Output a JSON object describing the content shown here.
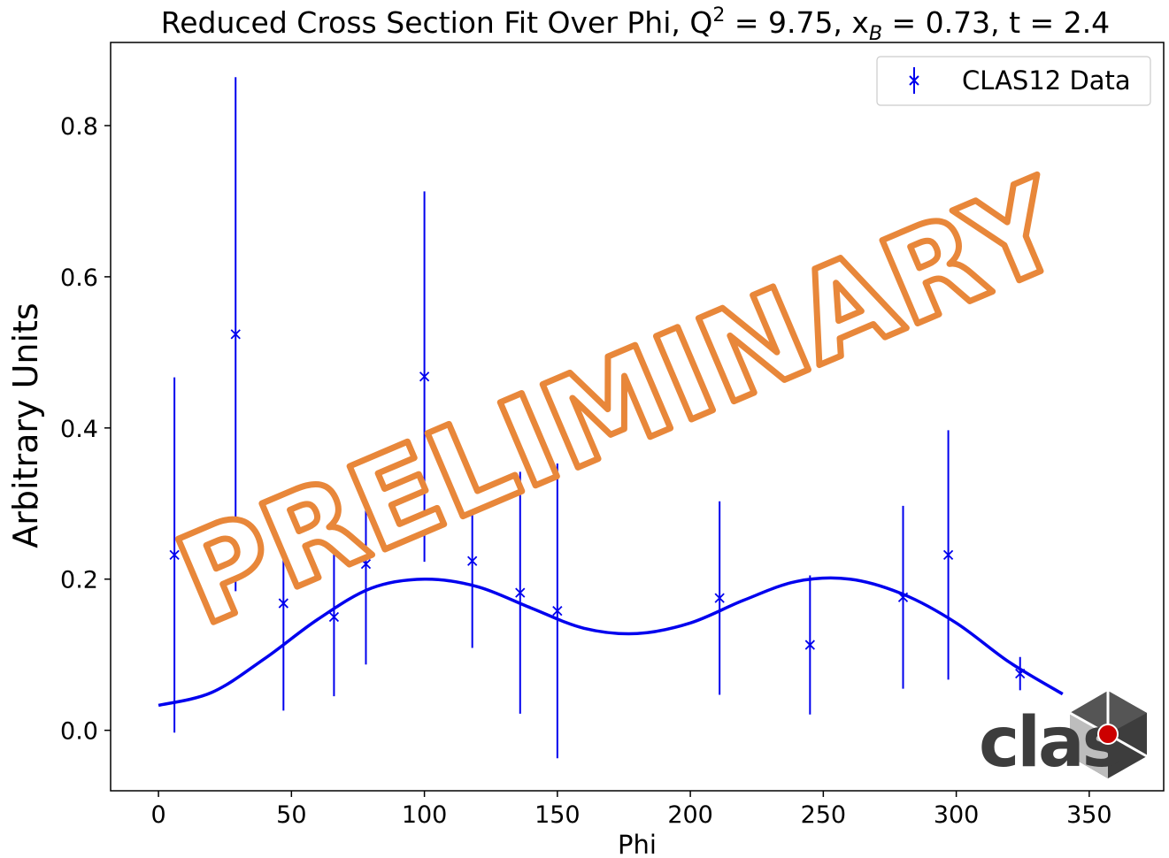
{
  "chart_data": {
    "type": "scatter",
    "title": "Reduced Cross Section Fit Over Phi, Q",
    "title_parts": {
      "prefix": "Reduced Cross Section Fit Over Phi, Q",
      "q_sup": "2",
      "mid1": " = 9.75, x",
      "x_sub": "B",
      "mid2": " = 0.73, t = 2.4"
    },
    "xlabel": "Phi",
    "ylabel": "Arbitrary Units",
    "xlim": [
      -18,
      378
    ],
    "ylim": [
      -0.08,
      0.91
    ],
    "x_ticks": [
      0,
      50,
      100,
      150,
      200,
      250,
      300,
      350
    ],
    "y_ticks": [
      0.0,
      0.2,
      0.4,
      0.6,
      0.8
    ],
    "y_tick_labels": [
      "0.0",
      "0.2",
      "0.4",
      "0.6",
      "0.8"
    ],
    "grid": false,
    "legend": {
      "placement": "top-right",
      "entries": [
        "CLAS12 Data"
      ]
    },
    "series": [
      {
        "name": "CLAS12 Data",
        "marker": "x",
        "color": "#0000ee",
        "x": [
          6,
          29,
          47,
          66,
          78,
          100,
          118,
          136,
          150,
          211,
          245,
          280,
          297,
          324
        ],
        "y": [
          0.232,
          0.524,
          0.168,
          0.15,
          0.22,
          0.468,
          0.224,
          0.182,
          0.158,
          0.175,
          0.113,
          0.176,
          0.232,
          0.075
        ],
        "yerr": [
          0.235,
          0.34,
          0.142,
          0.105,
          0.133,
          0.245,
          0.115,
          0.16,
          0.195,
          0.128,
          0.092,
          0.121,
          0.165,
          0.022
        ]
      },
      {
        "type": "line",
        "color": "#0000ee",
        "fit_x": [
          0,
          20,
          40,
          60,
          80,
          100,
          120,
          140,
          160,
          180,
          200,
          220,
          240,
          260,
          280,
          300,
          320,
          340
        ],
        "fit_y": [
          0.033,
          0.05,
          0.095,
          0.147,
          0.188,
          0.2,
          0.19,
          0.162,
          0.135,
          0.128,
          0.142,
          0.172,
          0.197,
          0.2,
          0.18,
          0.142,
          0.09,
          0.048
        ]
      }
    ]
  },
  "watermark": "PRELIMINARY",
  "logo": {
    "text": "clas",
    "accent_color": "#cc0000",
    "body_color": "#3d3d3d"
  }
}
